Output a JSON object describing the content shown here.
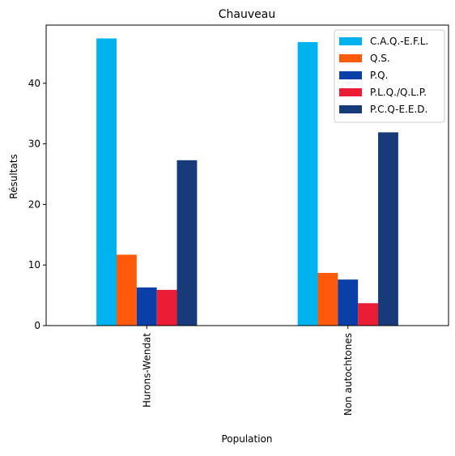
{
  "chart_data": {
    "type": "bar",
    "title": "Chauveau",
    "xlabel": "Population",
    "ylabel": "Résultats",
    "categories": [
      "Hurons-Wendat",
      "Non autochtones"
    ],
    "ylim": [
      0,
      49.6
    ],
    "yticks": [
      0,
      10,
      20,
      30,
      40
    ],
    "grid": false,
    "legend_position": "top-right",
    "series": [
      {
        "name": "C.A.Q.-E.F.L.",
        "color": "#00b2ee",
        "values": [
          47.4,
          46.8
        ]
      },
      {
        "name": "Q.S.",
        "color": "#ff5a0a",
        "values": [
          11.7,
          8.7
        ]
      },
      {
        "name": "P.Q.",
        "color": "#0a3fa8",
        "values": [
          6.3,
          7.6
        ]
      },
      {
        "name": "P.L.Q./Q.L.P.",
        "color": "#ea1d35",
        "values": [
          5.9,
          3.7
        ]
      },
      {
        "name": "P.C.Q-E.E.D.",
        "color": "#173a79",
        "values": [
          27.3,
          31.9
        ]
      }
    ]
  }
}
